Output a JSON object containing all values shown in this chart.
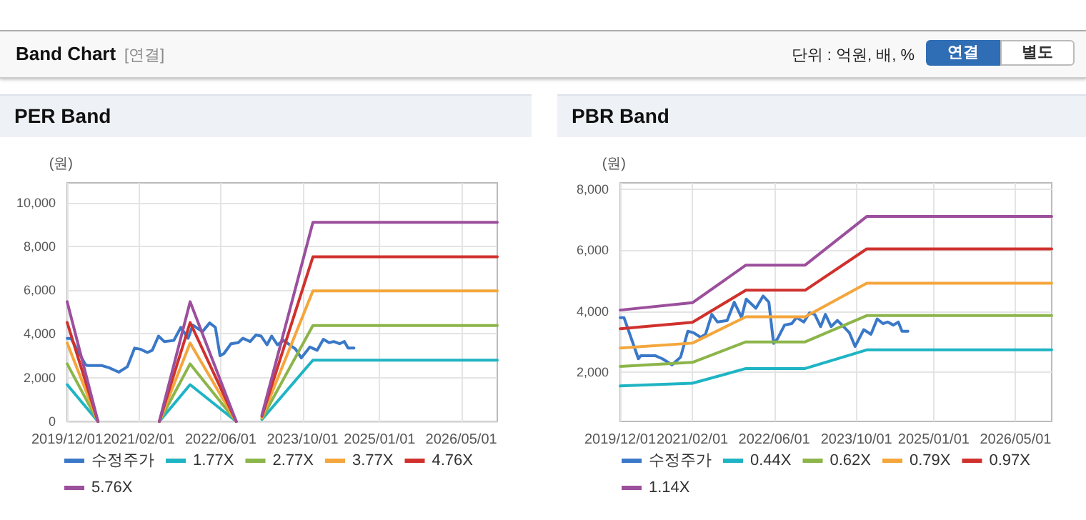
{
  "chart_data": [
    {
      "type": "other",
      "title": "Band Chart",
      "annotations": [
        "[연결]",
        "단위 : 억원, 배, %",
        "연결",
        "별도"
      ]
    },
    {
      "type": "line",
      "title": "PER Band",
      "ylabel": "(원)",
      "xlim": [
        "2019-12-01",
        "2026-12-01"
      ],
      "xticks": [
        {
          "value": "2019-12-01",
          "label": "2019/12/01"
        },
        {
          "value": "2021-02-01",
          "label": "2021/02/01"
        },
        {
          "value": "2022-06-01",
          "label": "2022/06/01"
        },
        {
          "value": "2023-10-01",
          "label": "2023/10/01"
        },
        {
          "value": "2025-01-01",
          "label": "2025/01/01"
        },
        {
          "value": "2026-05-01",
          "label": "2026/05/01"
        }
      ],
      "ylim": [
        0,
        10900
      ],
      "yticks": [
        0,
        {
          "value": 2000,
          "label": "2,000"
        },
        {
          "value": 4000,
          "label": "4,000"
        },
        {
          "value": 6000,
          "label": "6,000"
        },
        {
          "value": 8000,
          "label": "8,000"
        },
        {
          "value": 10000,
          "label": "10,000"
        }
      ],
      "grid": true,
      "legend": "bottom",
      "marker": "none",
      "line_style": "solid",
      "series": [
        {
          "name": "수정주가",
          "color": "#3a78c8",
          "x": [
            "2019-12-01",
            "2019-12-24",
            "2020-03-18",
            "2020-04-01",
            "2020-06-25",
            "2020-08-07",
            "2020-10-03",
            "2020-11-23",
            "2021-01-05",
            "2021-02-08",
            "2021-03-22",
            "2021-04-20",
            "2021-05-27",
            "2021-06-30",
            "2021-08-26",
            "2021-10-07",
            "2021-11-19",
            "2021-12-17",
            "2022-02-12",
            "2022-03-27",
            "2022-04-30",
            "2022-05-28",
            "2022-06-20",
            "2022-08-01",
            "2022-09-13",
            "2022-10-11",
            "2022-11-23",
            "2022-12-27",
            "2023-01-27",
            "2023-03-03",
            "2023-03-31",
            "2023-05-04",
            "2023-06-10",
            "2023-07-17",
            "2023-08-20",
            "2023-09-23",
            "2023-11-13",
            "2023-12-26",
            "2024-02-01",
            "2024-03-06",
            "2024-04-03",
            "2024-05-07",
            "2024-06-05",
            "2024-06-27",
            "2024-08-01"
          ],
          "values": [
            3790,
            3790,
            2600,
            2550,
            2550,
            2450,
            2250,
            2500,
            3350,
            3300,
            3150,
            3250,
            3900,
            3650,
            3700,
            4300,
            3800,
            4400,
            4100,
            4500,
            4300,
            3000,
            3100,
            3550,
            3600,
            3800,
            3650,
            3950,
            3900,
            3500,
            3900,
            3500,
            3700,
            3500,
            3300,
            2900,
            3400,
            3250,
            3750,
            3600,
            3650,
            3550,
            3650,
            3350,
            3350
          ]
        },
        {
          "name": "1.77X",
          "color": "#1fb4c4",
          "x": [
            "2019-12-01",
            "2020-06-01",
            "2021-01-01",
            "2021-06-01",
            "2021-12-01",
            "2022-09-01",
            "2022-12-01",
            "2023-02-01",
            "2023-12-01",
            "2026-12-01"
          ],
          "values": [
            1680,
            0,
            null,
            0,
            1680,
            0,
            null,
            90,
            2800,
            2800
          ]
        },
        {
          "name": "2.77X",
          "color": "#8cb54a",
          "x": [
            "2019-12-01",
            "2020-06-01",
            "2021-01-01",
            "2021-06-01",
            "2021-12-01",
            "2022-09-01",
            "2022-12-01",
            "2023-02-01",
            "2023-12-01",
            "2026-12-01"
          ],
          "values": [
            2630,
            0,
            null,
            0,
            2630,
            0,
            null,
            140,
            4380,
            4380
          ]
        },
        {
          "name": "3.77X",
          "color": "#f4a63c",
          "x": [
            "2019-12-01",
            "2020-06-01",
            "2021-01-01",
            "2021-06-01",
            "2021-12-01",
            "2022-09-01",
            "2022-12-01",
            "2023-02-01",
            "2023-12-01",
            "2026-12-01"
          ],
          "values": [
            3580,
            0,
            null,
            0,
            3580,
            0,
            null,
            190,
            5960,
            5960
          ]
        },
        {
          "name": "4.76X",
          "color": "#d0312d",
          "x": [
            "2019-12-01",
            "2020-06-01",
            "2021-01-01",
            "2021-06-01",
            "2021-12-01",
            "2022-09-01",
            "2022-12-01",
            "2023-02-01",
            "2023-12-01",
            "2026-12-01"
          ],
          "values": [
            4520,
            0,
            null,
            0,
            4520,
            0,
            null,
            240,
            7520,
            7520
          ]
        },
        {
          "name": "5.76X",
          "color": "#9b4f9c",
          "x": [
            "2019-12-01",
            "2020-06-01",
            "2021-01-01",
            "2021-06-01",
            "2021-12-01",
            "2022-09-01",
            "2022-12-01",
            "2023-02-01",
            "2023-12-01",
            "2026-12-01"
          ],
          "values": [
            5470,
            0,
            null,
            0,
            5470,
            0,
            null,
            290,
            9100,
            9100
          ]
        }
      ]
    },
    {
      "type": "line",
      "title": "PBR Band",
      "ylabel": "(원)",
      "xlim": [
        "2019-12-01",
        "2026-12-01"
      ],
      "xticks": [
        {
          "value": "2019-12-01",
          "label": "2019/12/01"
        },
        {
          "value": "2021-02-01",
          "label": "2021/02/01"
        },
        {
          "value": "2022-06-01",
          "label": "2022/06/01"
        },
        {
          "value": "2023-10-01",
          "label": "2023/10/01"
        },
        {
          "value": "2025-01-01",
          "label": "2025/01/01"
        },
        {
          "value": "2026-05-01",
          "label": "2026/05/01"
        }
      ],
      "ylim": [
        400,
        8200
      ],
      "yticks": [
        {
          "value": 2000,
          "label": "2,000"
        },
        {
          "value": 4000,
          "label": "4,000"
        },
        {
          "value": 6000,
          "label": "6,000"
        },
        {
          "value": 8000,
          "label": "8,000"
        }
      ],
      "grid": true,
      "legend": "bottom",
      "marker": "none",
      "line_style": "solid",
      "series": [
        {
          "name": "수정주가",
          "color": "#3a78c8",
          "x": [
            "2019-12-01",
            "2019-12-24",
            "2020-03-18",
            "2020-04-01",
            "2020-06-25",
            "2020-08-07",
            "2020-10-03",
            "2020-11-23",
            "2021-01-05",
            "2021-02-08",
            "2021-03-22",
            "2021-04-20",
            "2021-05-27",
            "2021-06-30",
            "2021-08-26",
            "2021-10-07",
            "2021-11-19",
            "2021-12-17",
            "2022-02-12",
            "2022-03-27",
            "2022-04-30",
            "2022-05-28",
            "2022-06-20",
            "2022-08-01",
            "2022-09-13",
            "2022-10-11",
            "2022-11-23",
            "2022-12-27",
            "2023-01-27",
            "2023-03-03",
            "2023-03-31",
            "2023-05-04",
            "2023-06-10",
            "2023-07-17",
            "2023-08-20",
            "2023-09-23",
            "2023-11-13",
            "2023-12-26",
            "2024-02-01",
            "2024-03-06",
            "2024-04-03",
            "2024-05-07",
            "2024-06-05",
            "2024-06-27",
            "2024-08-01"
          ],
          "values": [
            3790,
            3790,
            2450,
            2550,
            2550,
            2450,
            2250,
            2500,
            3350,
            3300,
            3150,
            3250,
            3900,
            3650,
            3700,
            4300,
            3800,
            4400,
            4100,
            4500,
            4300,
            2950,
            3100,
            3550,
            3600,
            3800,
            3650,
            3950,
            3900,
            3500,
            3900,
            3500,
            3700,
            3500,
            3300,
            2850,
            3400,
            3250,
            3750,
            3600,
            3650,
            3550,
            3650,
            3350,
            3350
          ]
        },
        {
          "name": "0.44X",
          "color": "#1fb4c4",
          "x": [
            "2019-12-01",
            "2021-02-01",
            "2021-12-15",
            "2022-12-01",
            "2023-12-01",
            "2026-12-01"
          ],
          "values": [
            1560,
            1650,
            2130,
            2130,
            2740,
            2740
          ]
        },
        {
          "name": "0.62X",
          "color": "#8cb54a",
          "x": [
            "2019-12-01",
            "2021-02-01",
            "2021-12-15",
            "2022-12-01",
            "2023-12-01",
            "2026-12-01"
          ],
          "values": [
            2200,
            2330,
            3000,
            3000,
            3860,
            3860
          ]
        },
        {
          "name": "0.79X",
          "color": "#f4a63c",
          "x": [
            "2019-12-01",
            "2021-02-01",
            "2021-12-15",
            "2022-12-01",
            "2023-12-01",
            "2026-12-01"
          ],
          "values": [
            2800,
            2960,
            3820,
            3820,
            4920,
            4920
          ]
        },
        {
          "name": "0.97X",
          "color": "#d0312d",
          "x": [
            "2019-12-01",
            "2021-02-01",
            "2021-12-15",
            "2022-12-01",
            "2023-12-01",
            "2026-12-01"
          ],
          "values": [
            3430,
            3640,
            4690,
            4690,
            6040,
            6040
          ]
        },
        {
          "name": "1.14X",
          "color": "#9b4f9c",
          "x": [
            "2019-12-01",
            "2021-02-01",
            "2021-12-15",
            "2022-12-01",
            "2023-12-01",
            "2026-12-01"
          ],
          "values": [
            4040,
            4280,
            5510,
            5510,
            7100,
            7100
          ]
        }
      ]
    }
  ]
}
